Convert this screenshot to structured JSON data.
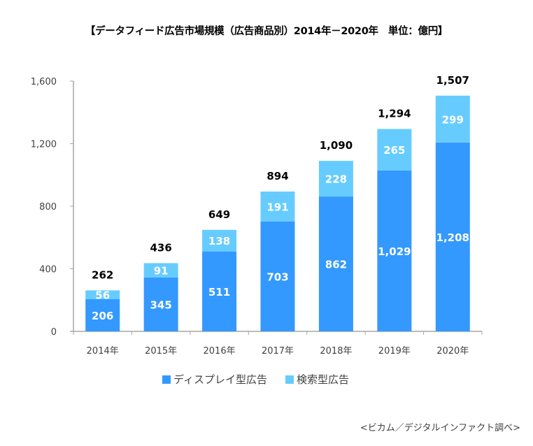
{
  "chart_data": {
    "type": "bar",
    "stacked": true,
    "title": "【データフィード広告市場規模（広告商品別）2014年－2020年　単位：億円】",
    "categories": [
      "2014年",
      "2015年",
      "2016年",
      "2017年",
      "2018年",
      "2019年",
      "2020年"
    ],
    "series": [
      {
        "name": "ディスプレイ型広告",
        "color": "#3399ff",
        "values": [
          206,
          345,
          511,
          703,
          862,
          1029,
          1208
        ],
        "labels": [
          "206",
          "345",
          "511",
          "703",
          "862",
          "1,029",
          "1,208"
        ]
      },
      {
        "name": "検索型広告",
        "color": "#66ccff",
        "values": [
          56,
          91,
          138,
          191,
          228,
          265,
          299
        ],
        "labels": [
          "56",
          "91",
          "138",
          "191",
          "228",
          "265",
          "299"
        ]
      }
    ],
    "totals": [
      262,
      436,
      649,
      894,
      1090,
      1294,
      1507
    ],
    "total_labels": [
      "262",
      "436",
      "649",
      "894",
      "1,090",
      "1,294",
      "1,507"
    ],
    "ylim": [
      0,
      1600
    ],
    "yticks": [
      0,
      400,
      800,
      1200,
      1600
    ],
    "ytick_labels": [
      "0",
      "400",
      "800",
      "1,200",
      "1,600"
    ],
    "xlabel": "",
    "ylabel": "",
    "grid": false,
    "legend_position": "bottom"
  },
  "source": "<ビカム／デジタルインファクト調べ>"
}
